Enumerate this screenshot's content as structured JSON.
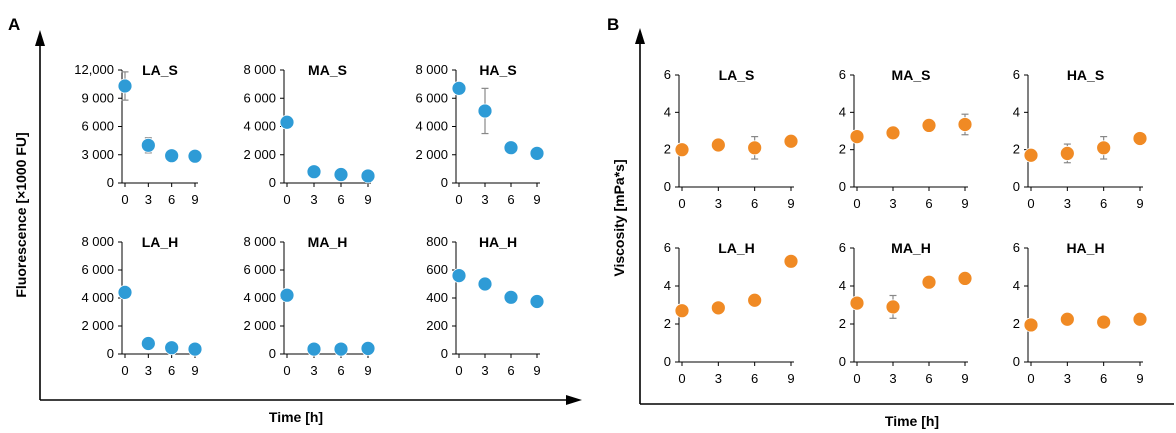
{
  "panels": [
    {
      "letter": "A",
      "ylabel": "Fluorescence [×1000 FU]",
      "xlabel": "Time [h]",
      "color": "#2e9bd6",
      "charts": [
        {
          "type": "scatter",
          "title": "LA_S",
          "x": [
            0,
            3,
            6,
            9
          ],
          "y": [
            10300,
            4000,
            2900,
            2850
          ],
          "err": [
            1500,
            800,
            0,
            0
          ],
          "ylim": [
            0,
            12000
          ],
          "yticks": [
            0,
            3000,
            6000,
            9000,
            12000
          ],
          "ytick_labels": [
            "0",
            "3 000",
            "6 000",
            "9 000",
            "12,000"
          ],
          "xticks": [
            0,
            3,
            6,
            9
          ],
          "xtick_labels": [
            "0",
            "3",
            "6",
            "9"
          ]
        },
        {
          "type": "scatter",
          "title": "MA_S",
          "x": [
            0,
            3,
            6,
            9
          ],
          "y": [
            4300,
            800,
            600,
            500
          ],
          "err": [
            0,
            0,
            0,
            0
          ],
          "ylim": [
            0,
            8000
          ],
          "yticks": [
            0,
            2000,
            4000,
            6000,
            8000
          ],
          "ytick_labels": [
            "0",
            "2 000",
            "4 000",
            "6 000",
            "8 000"
          ],
          "xticks": [
            0,
            3,
            6,
            9
          ],
          "xtick_labels": [
            "0",
            "3",
            "6",
            "9"
          ]
        },
        {
          "type": "scatter",
          "title": "HA_S",
          "x": [
            0,
            3,
            6,
            9
          ],
          "y": [
            6700,
            5100,
            2500,
            2100
          ],
          "err": [
            0,
            1600,
            0,
            0
          ],
          "ylim": [
            0,
            8000
          ],
          "yticks": [
            0,
            2000,
            4000,
            6000,
            8000
          ],
          "ytick_labels": [
            "0",
            "2 000",
            "4 000",
            "6 000",
            "8 000"
          ],
          "xticks": [
            0,
            3,
            6,
            9
          ],
          "xtick_labels": [
            "0",
            "3",
            "6",
            "9"
          ]
        },
        {
          "type": "scatter",
          "title": "LA_H",
          "x": [
            0,
            3,
            6,
            9
          ],
          "y": [
            4400,
            750,
            450,
            350
          ],
          "err": [
            0,
            0,
            0,
            0
          ],
          "ylim": [
            0,
            8000
          ],
          "yticks": [
            0,
            2000,
            4000,
            6000,
            8000
          ],
          "ytick_labels": [
            "0",
            "2 000",
            "4 000",
            "6 000",
            "8 000"
          ],
          "xticks": [
            0,
            3,
            6,
            9
          ],
          "xtick_labels": [
            "0",
            "3",
            "6",
            "9"
          ]
        },
        {
          "type": "scatter",
          "title": "MA_H",
          "x": [
            0,
            3,
            6,
            9
          ],
          "y": [
            4200,
            350,
            350,
            400
          ],
          "err": [
            0,
            0,
            0,
            0
          ],
          "ylim": [
            0,
            8000
          ],
          "yticks": [
            0,
            2000,
            4000,
            6000,
            8000
          ],
          "ytick_labels": [
            "0",
            "2 000",
            "4 000",
            "6 000",
            "8 000"
          ],
          "xticks": [
            0,
            3,
            6,
            9
          ],
          "xtick_labels": [
            "0",
            "3",
            "6",
            "9"
          ]
        },
        {
          "type": "scatter",
          "title": "HA_H",
          "x": [
            0,
            3,
            6,
            9
          ],
          "y": [
            560,
            500,
            405,
            375
          ],
          "err": [
            0,
            0,
            0,
            0
          ],
          "ylim": [
            0,
            800
          ],
          "yticks": [
            0,
            200,
            400,
            600,
            800
          ],
          "ytick_labels": [
            "0",
            "200",
            "400",
            "600",
            "800"
          ],
          "xticks": [
            0,
            3,
            6,
            9
          ],
          "xtick_labels": [
            "0",
            "3",
            "6",
            "9"
          ]
        }
      ]
    },
    {
      "letter": "B",
      "ylabel": "Viscosity [mPa*s]",
      "xlabel": "Time [h]",
      "color": "#f08a24",
      "charts": [
        {
          "type": "scatter",
          "title": "LA_S",
          "x": [
            0,
            3,
            6,
            9
          ],
          "y": [
            2.0,
            2.25,
            2.1,
            2.45
          ],
          "err": [
            0,
            0,
            0.6,
            0
          ],
          "ylim": [
            0,
            6
          ],
          "yticks": [
            0,
            2,
            4,
            6
          ],
          "ytick_labels": [
            "0",
            "2",
            "4",
            "6"
          ],
          "xticks": [
            0,
            3,
            6,
            9
          ],
          "xtick_labels": [
            "0",
            "3",
            "6",
            "9"
          ]
        },
        {
          "type": "scatter",
          "title": "MA_S",
          "x": [
            0,
            3,
            6,
            9
          ],
          "y": [
            2.7,
            2.9,
            3.3,
            3.35
          ],
          "err": [
            0,
            0,
            0,
            0.55
          ],
          "ylim": [
            0,
            6
          ],
          "yticks": [
            0,
            2,
            4,
            6
          ],
          "ytick_labels": [
            "0",
            "2",
            "4",
            "6"
          ],
          "xticks": [
            0,
            3,
            6,
            9
          ],
          "xtick_labels": [
            "0",
            "3",
            "6",
            "9"
          ]
        },
        {
          "type": "scatter",
          "title": "HA_S",
          "x": [
            0,
            3,
            6,
            9
          ],
          "y": [
            1.7,
            1.8,
            2.1,
            2.6
          ],
          "err": [
            0,
            0.5,
            0.6,
            0
          ],
          "ylim": [
            0,
            6
          ],
          "yticks": [
            0,
            2,
            4,
            6
          ],
          "ytick_labels": [
            "0",
            "2",
            "4",
            "6"
          ],
          "xticks": [
            0,
            3,
            6,
            9
          ],
          "xtick_labels": [
            "0",
            "3",
            "6",
            "9"
          ]
        },
        {
          "type": "scatter",
          "title": "LA_H",
          "x": [
            0,
            3,
            6,
            9
          ],
          "y": [
            2.7,
            2.85,
            3.25,
            5.3
          ],
          "err": [
            0,
            0,
            0,
            0
          ],
          "ylim": [
            0,
            6
          ],
          "yticks": [
            0,
            2,
            4,
            6
          ],
          "ytick_labels": [
            "0",
            "2",
            "4",
            "6"
          ],
          "xticks": [
            0,
            3,
            6,
            9
          ],
          "xtick_labels": [
            "0",
            "3",
            "6",
            "9"
          ]
        },
        {
          "type": "scatter",
          "title": "MA_H",
          "x": [
            0,
            3,
            6,
            9
          ],
          "y": [
            3.1,
            2.9,
            4.2,
            4.4
          ],
          "err": [
            0,
            0.6,
            0,
            0
          ],
          "ylim": [
            0,
            6
          ],
          "yticks": [
            0,
            2,
            4,
            6
          ],
          "ytick_labels": [
            "0",
            "2",
            "4",
            "6"
          ],
          "xticks": [
            0,
            3,
            6,
            9
          ],
          "xtick_labels": [
            "0",
            "3",
            "6",
            "9"
          ]
        },
        {
          "type": "scatter",
          "title": "HA_H",
          "x": [
            0,
            3,
            6,
            9
          ],
          "y": [
            1.95,
            2.25,
            2.1,
            2.25
          ],
          "err": [
            0,
            0,
            0,
            0
          ],
          "ylim": [
            0,
            6
          ],
          "yticks": [
            0,
            2,
            4,
            6
          ],
          "ytick_labels": [
            "0",
            "2",
            "4",
            "6"
          ],
          "xticks": [
            0,
            3,
            6,
            9
          ],
          "xtick_labels": [
            "0",
            "3",
            "6",
            "9"
          ]
        }
      ]
    }
  ],
  "chart_data": [
    {
      "type": "scatter",
      "panel": "A",
      "title": "LA_S",
      "x": [
        0,
        3,
        6,
        9
      ],
      "y": [
        10300,
        4000,
        2900,
        2850
      ],
      "ylim": [
        0,
        12000
      ],
      "xlabel": "Time [h]",
      "ylabel": "Fluorescence [×1000 FU]"
    },
    {
      "type": "scatter",
      "panel": "A",
      "title": "MA_S",
      "x": [
        0,
        3,
        6,
        9
      ],
      "y": [
        4300,
        800,
        600,
        500
      ],
      "ylim": [
        0,
        8000
      ],
      "xlabel": "Time [h]",
      "ylabel": "Fluorescence [×1000 FU]"
    },
    {
      "type": "scatter",
      "panel": "A",
      "title": "HA_S",
      "x": [
        0,
        3,
        6,
        9
      ],
      "y": [
        6700,
        5100,
        2500,
        2100
      ],
      "ylim": [
        0,
        8000
      ],
      "xlabel": "Time [h]",
      "ylabel": "Fluorescence [×1000 FU]"
    },
    {
      "type": "scatter",
      "panel": "A",
      "title": "LA_H",
      "x": [
        0,
        3,
        6,
        9
      ],
      "y": [
        4400,
        750,
        450,
        350
      ],
      "ylim": [
        0,
        8000
      ],
      "xlabel": "Time [h]",
      "ylabel": "Fluorescence [×1000 FU]"
    },
    {
      "type": "scatter",
      "panel": "A",
      "title": "MA_H",
      "x": [
        0,
        3,
        6,
        9
      ],
      "y": [
        4200,
        350,
        350,
        400
      ],
      "ylim": [
        0,
        8000
      ],
      "xlabel": "Time [h]",
      "ylabel": "Fluorescence [×1000 FU]"
    },
    {
      "type": "scatter",
      "panel": "A",
      "title": "HA_H",
      "x": [
        0,
        3,
        6,
        9
      ],
      "y": [
        560,
        500,
        405,
        375
      ],
      "ylim": [
        0,
        800
      ],
      "xlabel": "Time [h]",
      "ylabel": "Fluorescence [×1000 FU]"
    },
    {
      "type": "scatter",
      "panel": "B",
      "title": "LA_S",
      "x": [
        0,
        3,
        6,
        9
      ],
      "y": [
        2.0,
        2.25,
        2.1,
        2.45
      ],
      "ylim": [
        0,
        6
      ],
      "xlabel": "Time [h]",
      "ylabel": "Viscosity [mPa*s]"
    },
    {
      "type": "scatter",
      "panel": "B",
      "title": "MA_S",
      "x": [
        0,
        3,
        6,
        9
      ],
      "y": [
        2.7,
        2.9,
        3.3,
        3.35
      ],
      "ylim": [
        0,
        6
      ],
      "xlabel": "Time [h]",
      "ylabel": "Viscosity [mPa*s]"
    },
    {
      "type": "scatter",
      "panel": "B",
      "title": "HA_S",
      "x": [
        0,
        3,
        6,
        9
      ],
      "y": [
        1.7,
        1.8,
        2.1,
        2.6
      ],
      "ylim": [
        0,
        6
      ],
      "xlabel": "Time [h]",
      "ylabel": "Viscosity [mPa*s]"
    },
    {
      "type": "scatter",
      "panel": "B",
      "title": "LA_H",
      "x": [
        0,
        3,
        6,
        9
      ],
      "y": [
        2.7,
        2.85,
        3.25,
        5.3
      ],
      "ylim": [
        0,
        6
      ],
      "xlabel": "Time [h]",
      "ylabel": "Viscosity [mPa*s]"
    },
    {
      "type": "scatter",
      "panel": "B",
      "title": "MA_H",
      "x": [
        0,
        3,
        6,
        9
      ],
      "y": [
        3.1,
        2.9,
        4.2,
        4.4
      ],
      "ylim": [
        0,
        6
      ],
      "xlabel": "Time [h]",
      "ylabel": "Viscosity [mPa*s]"
    },
    {
      "type": "scatter",
      "panel": "B",
      "title": "HA_H",
      "x": [
        0,
        3,
        6,
        9
      ],
      "y": [
        1.95,
        2.25,
        2.1,
        2.25
      ],
      "ylim": [
        0,
        6
      ],
      "xlabel": "Time [h]",
      "ylabel": "Viscosity [mPa*s]"
    }
  ]
}
